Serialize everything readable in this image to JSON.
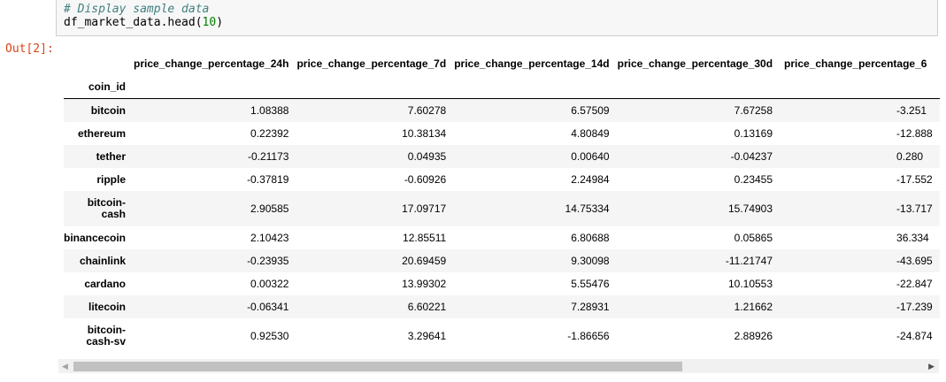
{
  "code": {
    "comment": "# Display sample data",
    "line2_prefix": "df_market_data.head(",
    "line2_num": "10",
    "line2_suffix": ")"
  },
  "output_prompt": "Out[2]:",
  "table": {
    "index_name": "coin_id",
    "columns": [
      "price_change_percentage_24h",
      "price_change_percentage_7d",
      "price_change_percentage_14d",
      "price_change_percentage_30d",
      "price_change_percentage_6"
    ],
    "rows": [
      {
        "id": "bitcoin",
        "values": [
          "1.08388",
          "7.60278",
          "6.57509",
          "7.67258",
          "-3.251"
        ]
      },
      {
        "id": "ethereum",
        "values": [
          "0.22392",
          "10.38134",
          "4.80849",
          "0.13169",
          "-12.888"
        ]
      },
      {
        "id": "tether",
        "values": [
          "-0.21173",
          "0.04935",
          "0.00640",
          "-0.04237",
          "0.280"
        ]
      },
      {
        "id": "ripple",
        "values": [
          "-0.37819",
          "-0.60926",
          "2.24984",
          "0.23455",
          "-17.552"
        ]
      },
      {
        "id": "bitcoin-cash",
        "id_line1": "bitcoin-",
        "id_line2": "cash",
        "values": [
          "2.90585",
          "17.09717",
          "14.75334",
          "15.74903",
          "-13.717"
        ]
      },
      {
        "id": "binancecoin",
        "values": [
          "2.10423",
          "12.85511",
          "6.80688",
          "0.05865",
          "36.334"
        ]
      },
      {
        "id": "chainlink",
        "values": [
          "-0.23935",
          "20.69459",
          "9.30098",
          "-11.21747",
          "-43.695"
        ]
      },
      {
        "id": "cardano",
        "values": [
          "0.00322",
          "13.99302",
          "5.55476",
          "10.10553",
          "-22.847"
        ]
      },
      {
        "id": "litecoin",
        "values": [
          "-0.06341",
          "6.60221",
          "7.28931",
          "1.21662",
          "-17.239"
        ]
      },
      {
        "id": "bitcoin-cash-sv",
        "id_line1": "bitcoin-",
        "id_line2": "cash-sv",
        "values": [
          "0.92530",
          "3.29641",
          "-1.86656",
          "2.88926",
          "-24.874"
        ]
      }
    ]
  },
  "scrollbar": {
    "left_arrow": "◀",
    "right_arrow": "▶"
  }
}
